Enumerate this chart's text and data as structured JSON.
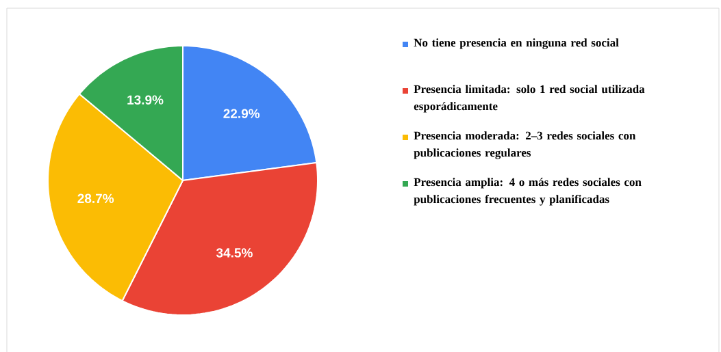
{
  "chart_data": {
    "type": "pie",
    "categories": [
      "No tiene presencia en ninguna red social",
      "Presencia limitada: solo 1 red social utilizada esporádicamente",
      "Presencia moderada: 2–3 redes sociales con publicaciones regulares",
      "Presencia amplia: 4 o más redes sociales con publicaciones frecuentes y planificadas"
    ],
    "values": [
      22.9,
      34.5,
      28.7,
      13.9
    ],
    "colors": [
      "#4285f4",
      "#ea4335",
      "#fbbc04",
      "#34a853"
    ],
    "value_labels": [
      "22.9%",
      "34.5%",
      "28.7%",
      "13.9%"
    ],
    "legend": "right"
  }
}
